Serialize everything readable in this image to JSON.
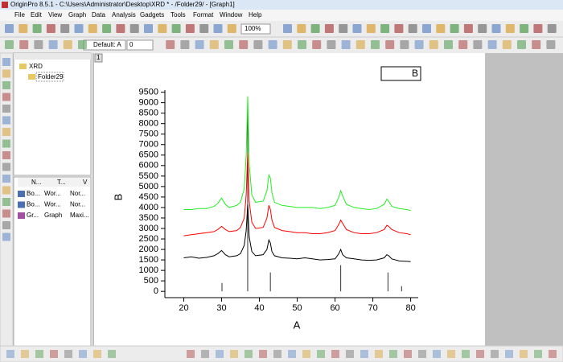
{
  "window": {
    "title": "OriginPro 8.5.1 - C:\\Users\\Administrator\\Desktop\\XRD * - /Folder29/ - [Graph1]"
  },
  "menu": [
    "File",
    "Edit",
    "View",
    "Graph",
    "Data",
    "Analysis",
    "Gadgets",
    "Tools",
    "Format",
    "Window",
    "Help"
  ],
  "toolbar": {
    "zoom": "100%",
    "font": "Default: A",
    "font_size": "0"
  },
  "explorer": {
    "tree": [
      "XRD",
      "Folder29"
    ],
    "columns": [
      "N...",
      "T...",
      "V"
    ],
    "rows": [
      [
        "Bo...",
        "Wor...",
        "Nor..."
      ],
      [
        "Bo...",
        "Wor...",
        "Nor..."
      ],
      [
        "Gr...",
        "Graph",
        "Maxi..."
      ]
    ]
  },
  "graph_tab": "1",
  "chart_data": {
    "type": "line",
    "x_label": "A",
    "y_label": "B",
    "legend": "B",
    "x": [
      20,
      22,
      24,
      26,
      28,
      29,
      30,
      31,
      32,
      34,
      35,
      36,
      36.5,
      36.9,
      37.3,
      38,
      39,
      41,
      42,
      42.5,
      42.9,
      43.3,
      44,
      46,
      48,
      50,
      52,
      54,
      56,
      58,
      60,
      61,
      61.5,
      62,
      63,
      65,
      67,
      69,
      71,
      73,
      73.7,
      74.2,
      75,
      77,
      79,
      80
    ],
    "series": [
      {
        "color": "#000000",
        "values": [
          1600,
          1650,
          1580,
          1620,
          1700,
          1800,
          1950,
          1750,
          1650,
          1700,
          1800,
          2200,
          2900,
          4150,
          2600,
          1900,
          1700,
          1750,
          2000,
          2450,
          2300,
          1900,
          1700,
          1600,
          1580,
          1550,
          1600,
          1550,
          1500,
          1520,
          1550,
          1800,
          2000,
          1750,
          1600,
          1550,
          1500,
          1480,
          1500,
          1600,
          1750,
          1700,
          1550,
          1450,
          1430,
          1420
        ]
      },
      {
        "color": "#ff0000",
        "values": [
          2650,
          2700,
          2750,
          2800,
          2850,
          2950,
          3100,
          2950,
          2850,
          2900,
          3050,
          3500,
          4600,
          6600,
          4300,
          3300,
          3000,
          3050,
          3500,
          4100,
          3900,
          3400,
          3050,
          2900,
          2850,
          2800,
          2800,
          2750,
          2750,
          2800,
          2900,
          3200,
          3400,
          3250,
          2950,
          2800,
          2750,
          2750,
          2800,
          2950,
          3150,
          3100,
          2950,
          2800,
          2750,
          2700
        ]
      },
      {
        "color": "#22ee22",
        "values": [
          3900,
          3900,
          3950,
          3950,
          4050,
          4200,
          4450,
          4150,
          4000,
          4100,
          4250,
          4900,
          6500,
          9300,
          6100,
          4600,
          4250,
          4300,
          4800,
          5550,
          5400,
          4700,
          4250,
          4100,
          4050,
          4000,
          4000,
          4000,
          3950,
          4000,
          4100,
          4500,
          4800,
          4550,
          4150,
          4000,
          3950,
          3900,
          3950,
          4150,
          4400,
          4300,
          4050,
          3950,
          3900,
          3850
        ]
      }
    ],
    "sticks": {
      "color": "#333333",
      "x": [
        30.1,
        36.9,
        42.9,
        61.5,
        74.0,
        77.6
      ],
      "values": [
        400,
        8600,
        900,
        1250,
        900,
        250
      ]
    },
    "xlim": [
      15,
      82
    ],
    "ylim": [
      -300,
      9600
    ],
    "xticks": [
      20,
      30,
      40,
      50,
      60,
      70,
      80
    ],
    "yticks": [
      0,
      500,
      1000,
      1500,
      2000,
      2500,
      3000,
      3500,
      4000,
      4500,
      5000,
      5500,
      6000,
      6500,
      7000,
      7500,
      8000,
      8500,
      9000,
      9500
    ]
  }
}
